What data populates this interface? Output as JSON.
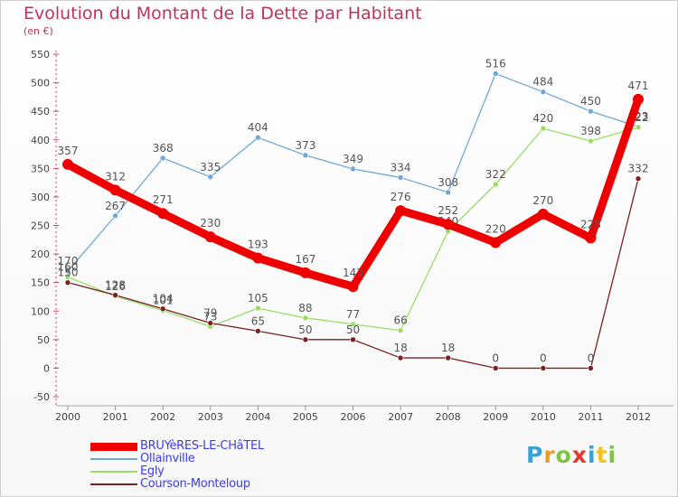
{
  "chart_data": {
    "type": "line",
    "title": "Evolution du Montant de la Dette par Habitant",
    "subtitle": "(en €)",
    "x": [
      "2000",
      "2001",
      "2002",
      "2003",
      "2004",
      "2005",
      "2006",
      "2007",
      "2008",
      "2009",
      "2010",
      "2011",
      "2012"
    ],
    "ylim": [
      -50,
      550
    ],
    "yticks": [
      -50,
      0,
      50,
      100,
      150,
      200,
      250,
      300,
      350,
      400,
      450,
      500,
      550
    ],
    "grid": false,
    "legend_position": "bottom-left",
    "series": [
      {
        "name": "BRUYèRES-LE-CHâTEL",
        "color": "#ee0000",
        "values": [
          357,
          312,
          271,
          230,
          193,
          167,
          143,
          276,
          252,
          220,
          270,
          228,
          471
        ]
      },
      {
        "name": "Ollainville",
        "color": "#6fa8d6",
        "values": [
          170,
          267,
          368,
          335,
          404,
          373,
          349,
          334,
          308,
          516,
          484,
          450,
          423
        ]
      },
      {
        "name": "Egly",
        "color": "#99dd66",
        "values": [
          160,
          126,
          101,
          73,
          105,
          88,
          77,
          66,
          240,
          322,
          420,
          398,
          422
        ]
      },
      {
        "name": "Courson-Monteloup",
        "color": "#7a2222",
        "values": [
          150,
          128,
          104,
          79,
          65,
          50,
          50,
          18,
          18,
          0,
          0,
          0,
          332
        ]
      }
    ]
  },
  "logo": {
    "letters": [
      "P",
      "r",
      "o",
      "x",
      "i",
      "t",
      "i"
    ],
    "colors": [
      "#3aa0d8",
      "#f29a1f",
      "#7fc241",
      "#e23a2e",
      "#3aa0d8",
      "#f2c21f",
      "#7fc241"
    ]
  }
}
